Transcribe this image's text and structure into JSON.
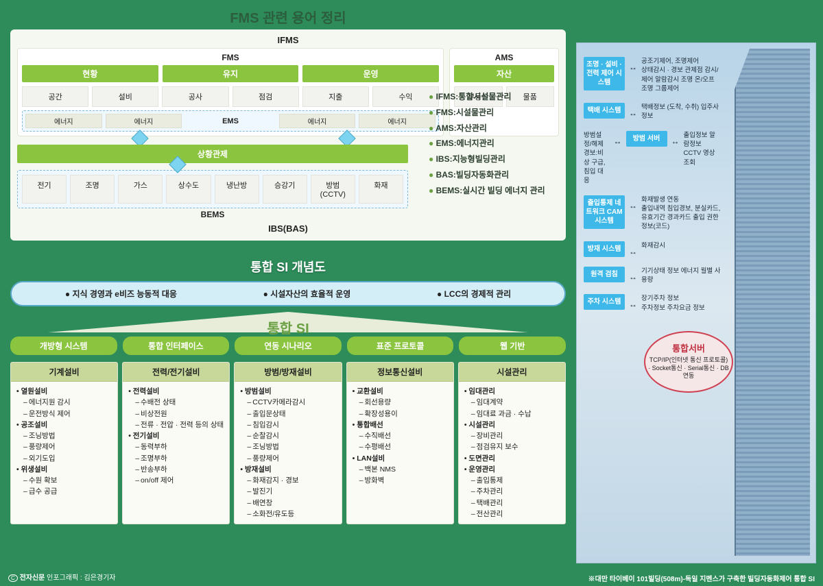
{
  "title": "FMS 관련 용어 정리",
  "ifms_label": "IFMS",
  "fms_label": "FMS",
  "ams_label": "AMS",
  "fms_tabs": [
    "현황",
    "유지",
    "운영"
  ],
  "fms_cells": [
    "공간",
    "설비",
    "공사",
    "점검",
    "지출",
    "수익"
  ],
  "ams_tab": "자산",
  "ams_cells": [
    "부동산",
    "물품"
  ],
  "ems_cells": [
    "에너지",
    "에너지",
    "에너지",
    "에너지"
  ],
  "ems_label": "EMS",
  "situation": "상황관제",
  "bems_cells": [
    "전기",
    "조명",
    "가스",
    "상수도",
    "냉난방",
    "승강기",
    "방범\n(CCTV)",
    "화재"
  ],
  "bems_label": "BEMS",
  "ibs_label": "IBS(BAS)",
  "legend": [
    "IFMS:통합시설물관리",
    "FMS:시설물관리",
    "AMS:자산관리",
    "EMS:에너지관리",
    "IBS:지능형빌딩관리",
    "BAS:빌딩자동화관리",
    "BEMS:실시간 빌딩 에너지 관리"
  ],
  "si_title": "통합 SI 개념도",
  "si_pills": [
    "지식 경영과 e비즈 능동적 대응",
    "시설자산의 효율적 운영",
    "LCC의 경제적 관리"
  ],
  "si_arrow_label": "통합 SI",
  "green_pills": [
    "개방형 시스템",
    "통합 인터페이스",
    "연동 시나리오",
    "표준 프로토콜",
    "웹 기반"
  ],
  "detail_cols": [
    {
      "head": "기계설비",
      "items": [
        {
          "b": "열원설비",
          "subs": [
            "에너지원 감시",
            "운전방식 제어"
          ]
        },
        {
          "b": "공조설비",
          "subs": [
            "조닝방법",
            "풍량제어",
            "외기도입"
          ]
        },
        {
          "b": "위생설비",
          "subs": [
            "수원 확보",
            "급수 공급"
          ]
        }
      ]
    },
    {
      "head": "전력/전기설비",
      "items": [
        {
          "b": "전력설비",
          "subs": [
            "수배전 상태",
            "비상전원",
            "전류 · 전압 · 전력 등의 상태"
          ]
        },
        {
          "b": "전기설비",
          "subs": [
            "동력부하",
            "조명부하",
            "반송부하",
            "on/off 제어"
          ]
        }
      ]
    },
    {
      "head": "방범/방재설비",
      "items": [
        {
          "b": "방범설비",
          "subs": [
            "CCTV카메라감시",
            "출입문상태",
            "침입감시",
            "순찰감시",
            "조닝방법",
            "풍량제어"
          ]
        },
        {
          "b": "방재설비",
          "subs": [
            "화재감지 · 경보",
            "발진기",
            "배연창",
            "소화전/유도등"
          ]
        }
      ]
    },
    {
      "head": "정보통신설비",
      "items": [
        {
          "b": "교환설비",
          "subs": [
            "회선용량",
            "확장성용이"
          ]
        },
        {
          "b": "통합배선",
          "subs": [
            "수직배선",
            "수평배선"
          ]
        },
        {
          "b": "LAN설비",
          "subs": [
            "백본 NMS",
            "방화벽"
          ]
        }
      ]
    },
    {
      "head": "시설관리",
      "items": [
        {
          "b": "임대관리",
          "subs": [
            "임대계약",
            "임대료 과금 · 수납"
          ]
        },
        {
          "b": "시설관리",
          "subs": [
            "장비관리",
            "점검유지 보수"
          ]
        },
        {
          "b": "도면관리",
          "subs": []
        },
        {
          "b": "운영관리",
          "subs": [
            "출입통제",
            "주차관리",
            "택배관리",
            "전산관리"
          ]
        }
      ]
    }
  ],
  "systems": [
    {
      "name": "조명 · 설비 · 전력 제어 시스템",
      "desc": "공조기제어, 조명제어\n상태감시 · 경보 관제점 감시/제어 알람감시 조명 온/오프 조명 그룹제어"
    },
    {
      "name": "택배 시스템",
      "desc": "택배정보 (도착, 수취) 입주사 정보"
    },
    {
      "name": "방범 서버",
      "desc": "출입정보 알람정보\nCCTV 영상 조회",
      "pre": "방범설정/해제\n경보:비상 구급, 침입 대응"
    },
    {
      "name": "출입통제 네트워크 CAM 시스템",
      "desc": "화재발생 연동\n출입내역 침입경보, 분실카드, 유효기간 경과카드 출입 권한 정보(코드)"
    },
    {
      "name": "방재 시스템",
      "desc": "화재감시"
    },
    {
      "name": "원격 검침",
      "desc": "기기상태 정보 에너지 월별 사용량"
    },
    {
      "name": "주차 시스템",
      "desc": "장기주차 정보\n주차정보 주차요금 정보"
    }
  ],
  "server_title": "통합서버",
  "server_body": "TCP/IP(인터넷 통신 프로토콜) · Socket통신 · Serial통신 · DB연동",
  "footnote": "※대만 타이베이 101빌딩(508m)-독일 지멘스가 구축한 빌딩자동화제어 통합 SI",
  "credit_bold": "전자신문",
  "credit_rest": " 인포그래픽 : 김은경기자"
}
